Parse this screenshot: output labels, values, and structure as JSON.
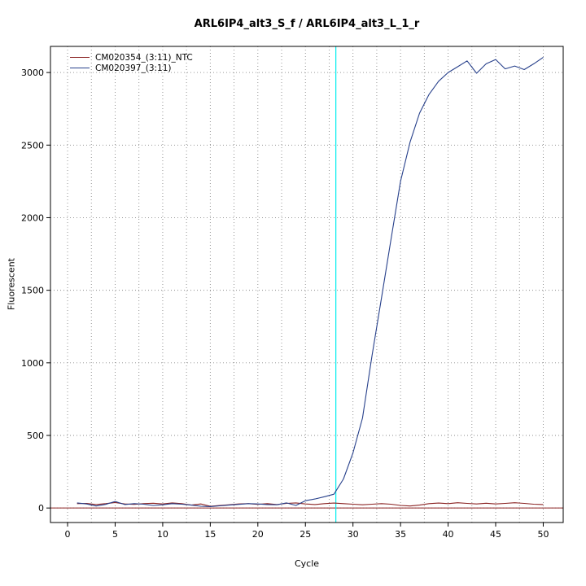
{
  "title": "ARL6IP4_alt3_S_f / ARL6IP4_alt3_L_1_r",
  "chart_data": {
    "type": "line",
    "title": "ARL6IP4_alt3_S_f / ARL6IP4_alt3_L_1_r",
    "xlabel": "Cycle",
    "ylabel": "Fluorescent",
    "xlim": [
      -1.8,
      52.1
    ],
    "ylim": [
      -100,
      3180
    ],
    "x_ticks": [
      0,
      5,
      10,
      15,
      20,
      25,
      30,
      35,
      40,
      45,
      50
    ],
    "y_ticks": [
      0,
      500,
      1000,
      1500,
      2000,
      2500,
      3000
    ],
    "grid": true,
    "grid_x_step": 2.5,
    "legend_position": "top-left",
    "threshold_line_y": 0,
    "threshold_line_color": "#8B2323",
    "ct_line_x": 28.2,
    "ct_line_color": "#00EEEE",
    "x": [
      1,
      2,
      3,
      4,
      5,
      6,
      7,
      8,
      9,
      10,
      11,
      12,
      13,
      14,
      15,
      16,
      17,
      18,
      19,
      20,
      21,
      22,
      23,
      24,
      25,
      26,
      27,
      28,
      29,
      30,
      31,
      32,
      33,
      34,
      35,
      36,
      37,
      38,
      39,
      40,
      41,
      42,
      43,
      44,
      45,
      46,
      47,
      48,
      49,
      50
    ],
    "series": [
      {
        "name": "CM020354_(3:11)_NTC",
        "color": "#8B2323",
        "values": [
          30,
          32,
          24,
          30,
          38,
          28,
          25,
          30,
          33,
          28,
          35,
          30,
          20,
          28,
          12,
          18,
          22,
          28,
          30,
          25,
          30,
          24,
          32,
          35,
          28,
          24,
          30,
          34,
          30,
          26,
          22,
          26,
          30,
          26,
          18,
          14,
          20,
          30,
          34,
          30,
          36,
          32,
          28,
          33,
          28,
          32,
          36,
          32,
          26,
          24
        ]
      },
      {
        "name": "CM020397_(3:11)",
        "color": "#27408B",
        "values": [
          35,
          28,
          14,
          25,
          45,
          24,
          30,
          26,
          18,
          22,
          30,
          26,
          20,
          12,
          10,
          15,
          20,
          25,
          30,
          28,
          24,
          22,
          35,
          18,
          50,
          62,
          78,
          95,
          200,
          380,
          620,
          1050,
          1450,
          1850,
          2250,
          2520,
          2720,
          2850,
          2940,
          3000,
          3040,
          3080,
          2995,
          3060,
          3090,
          3025,
          3045,
          3020,
          3060,
          3105
        ]
      }
    ]
  }
}
